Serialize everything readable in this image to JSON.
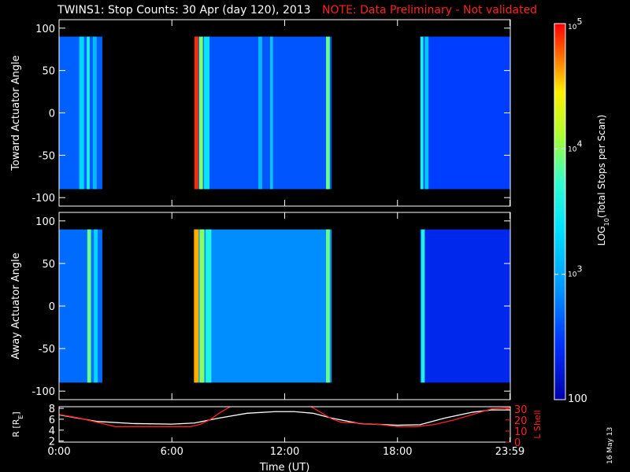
{
  "title": {
    "main": "TWINS1: Stop Counts: 30 Apr (day 120), 2013",
    "note": "NOTE: Data Preliminary - Not validated",
    "note_color": "#ff2020"
  },
  "date_stamp": "16 May 13",
  "colors": {
    "background": "#000000",
    "axis": "#ffffff",
    "r_line": "#ffffff",
    "lshell_line": "#ff2020"
  },
  "chart_data": [
    {
      "type": "heatmap",
      "ylabel": "Toward Actuator Angle",
      "ylim": [
        -110,
        110
      ],
      "yticks": [
        100,
        50,
        0,
        -50,
        -100
      ],
      "xlim": [
        0,
        24
      ],
      "y_data_range": [
        -90,
        90
      ],
      "segments": [
        {
          "start": 0.0,
          "end": 2.3,
          "log_level": 2.65
        },
        {
          "start": 7.2,
          "end": 14.5,
          "log_level": 2.6
        },
        {
          "start": 19.2,
          "end": 24.0,
          "log_level": 2.5
        }
      ],
      "bands": [
        {
          "t": 1.2,
          "width": 0.25,
          "log_level": 3.3
        },
        {
          "t": 1.55,
          "width": 0.15,
          "log_level": 3.6
        },
        {
          "t": 1.9,
          "width": 0.2,
          "log_level": 3.1
        },
        {
          "t": 7.3,
          "width": 0.2,
          "log_level": 4.9
        },
        {
          "t": 7.55,
          "width": 0.2,
          "log_level": 4.0
        },
        {
          "t": 7.85,
          "width": 0.3,
          "log_level": 3.4
        },
        {
          "t": 10.7,
          "width": 0.2,
          "log_level": 3.1
        },
        {
          "t": 11.3,
          "width": 0.15,
          "log_level": 3.2
        },
        {
          "t": 14.3,
          "width": 0.2,
          "log_level": 3.9
        },
        {
          "t": 19.3,
          "width": 0.15,
          "log_level": 3.6
        },
        {
          "t": 19.55,
          "width": 0.2,
          "log_level": 3.2
        }
      ]
    },
    {
      "type": "heatmap",
      "ylabel": "Away Actuator Angle",
      "ylim": [
        -110,
        110
      ],
      "yticks": [
        100,
        50,
        0,
        -50,
        -100
      ],
      "xlim": [
        0,
        24
      ],
      "y_data_range": [
        -90,
        90
      ],
      "segments": [
        {
          "start": 0.0,
          "end": 2.3,
          "log_level": 2.7
        },
        {
          "start": 7.2,
          "end": 14.5,
          "log_level": 2.85
        },
        {
          "start": 19.2,
          "end": 24.0,
          "log_level": 2.35
        }
      ],
      "bands": [
        {
          "t": 1.6,
          "width": 0.2,
          "log_level": 3.9
        },
        {
          "t": 1.95,
          "width": 0.2,
          "log_level": 3.3
        },
        {
          "t": 7.3,
          "width": 0.25,
          "log_level": 4.6
        },
        {
          "t": 7.6,
          "width": 0.25,
          "log_level": 4.0
        },
        {
          "t": 7.95,
          "width": 0.3,
          "log_level": 3.6
        },
        {
          "t": 14.3,
          "width": 0.2,
          "log_level": 3.9
        },
        {
          "t": 19.35,
          "width": 0.2,
          "log_level": 3.6
        }
      ]
    },
    {
      "type": "line",
      "left_ylabel": "R [R",
      "left_ylabel_sub": "E",
      "left_ylabel_end": "]",
      "right_ylabel": "L Shell",
      "xlabel": "Time (UT)",
      "xlim": [
        0,
        24
      ],
      "left_ylim": [
        1.8,
        8.3
      ],
      "left_yticks": [
        2,
        4,
        6,
        8
      ],
      "right_ylim": [
        0,
        32
      ],
      "right_yticks": [
        0,
        10,
        20,
        30
      ],
      "xticks": [
        {
          "t": 0,
          "label": "0:00"
        },
        {
          "t": 6,
          "label": "6:00"
        },
        {
          "t": 12,
          "label": "12:00"
        },
        {
          "t": 18,
          "label": "18:00"
        },
        {
          "t": 23.98,
          "label": "23:59"
        }
      ],
      "series": [
        {
          "axis": "left",
          "x": [
            0,
            2,
            4,
            6,
            7.2,
            8.5,
            10,
            11.5,
            12.5,
            13.5,
            14.5,
            16,
            18,
            19.2,
            20.5,
            22,
            23,
            24
          ],
          "values": [
            6.8,
            5.6,
            5.2,
            5.1,
            5.3,
            6.2,
            7.1,
            7.4,
            7.4,
            7.1,
            6.2,
            5.2,
            4.9,
            5.0,
            6.2,
            7.3,
            7.7,
            7.7
          ]
        },
        {
          "axis": "right",
          "x": [
            0,
            1,
            2,
            3,
            4,
            5,
            6,
            7,
            7.5,
            8,
            8.5,
            9.2
          ],
          "values": [
            25,
            22,
            18,
            14,
            14,
            14,
            14,
            14,
            16,
            20,
            26,
            33
          ]
        },
        {
          "axis": "right",
          "x": [
            13.3,
            14,
            14.5,
            15,
            16,
            17,
            18,
            19,
            20,
            21,
            22,
            23,
            24
          ],
          "values": [
            33,
            26,
            21,
            18,
            17,
            16,
            14,
            14,
            16,
            20,
            25,
            30,
            31
          ]
        }
      ]
    }
  ],
  "colorbar": {
    "label_prefix": "LOG",
    "label_sub": "10",
    "label_suffix": "(Total Stops per Scan)",
    "log_min": 2,
    "log_max": 5,
    "ticks": [
      {
        "log": 5,
        "base": "10",
        "exp": "5"
      },
      {
        "log": 4,
        "base": "10",
        "exp": "4"
      },
      {
        "log": 3,
        "base": "10",
        "exp": "3"
      },
      {
        "log": 2,
        "base": "100",
        "exp": ""
      }
    ]
  }
}
